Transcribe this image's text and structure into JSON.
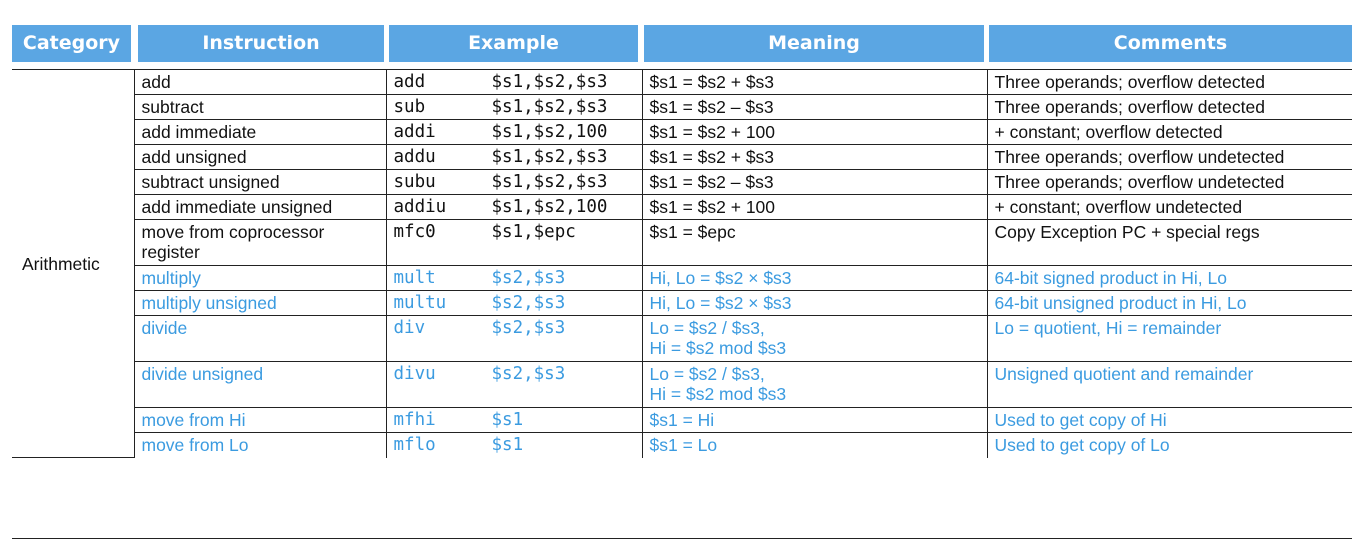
{
  "header": {
    "category": "Category",
    "instruction": "Instruction",
    "example": "Example",
    "meaning": "Meaning",
    "comments": "Comments"
  },
  "category_label": "Arithmetic",
  "rows": [
    {
      "instruction": "add",
      "op": "add",
      "args": "$s1,$s2,$s3",
      "meaning": "$s1 = $s2 + $s3",
      "comment": "Three operands; overflow detected",
      "highlight": false
    },
    {
      "instruction": "subtract",
      "op": "sub",
      "args": "$s1,$s2,$s3",
      "meaning": "$s1 = $s2 – $s3",
      "comment": "Three operands; overflow detected",
      "highlight": false
    },
    {
      "instruction": "add immediate",
      "op": "addi",
      "args": "$s1,$s2,100",
      "meaning": "$s1 = $s2 + 100",
      "comment": "+ constant; overflow detected",
      "highlight": false
    },
    {
      "instruction": "add unsigned",
      "op": "addu",
      "args": "$s1,$s2,$s3",
      "meaning": "$s1 = $s2 + $s3",
      "comment": "Three operands; overflow undetected",
      "highlight": false
    },
    {
      "instruction": "subtract unsigned",
      "op": "subu",
      "args": "$s1,$s2,$s3",
      "meaning": "$s1 = $s2 – $s3",
      "comment": "Three operands; overflow undetected",
      "highlight": false
    },
    {
      "instruction": "add immediate unsigned",
      "op": "addiu",
      "args": "$s1,$s2,100",
      "meaning": "$s1 = $s2 + 100",
      "comment": "+ constant; overflow undetected",
      "highlight": false
    },
    {
      "instruction": "move from coprocessor register",
      "op": "mfc0",
      "args": "$s1,$epc",
      "meaning": "$s1 = $epc",
      "comment": "Copy Exception PC + special regs",
      "highlight": false
    },
    {
      "instruction": "multiply",
      "op": "mult",
      "args": "$s2,$s3",
      "meaning": "Hi, Lo = $s2 × $s3",
      "comment": "64-bit signed product in Hi, Lo",
      "highlight": true
    },
    {
      "instruction": "multiply unsigned",
      "op": "multu",
      "args": "$s2,$s3",
      "meaning": "Hi, Lo = $s2 × $s3",
      "comment": "64-bit unsigned product in Hi, Lo",
      "highlight": true
    },
    {
      "instruction": "divide",
      "op": "div",
      "args": "$s2,$s3",
      "meaning": "Lo = $s2 / $s3,",
      "meaning2": "Hi = $s2 mod $s3",
      "comment": "Lo = quotient, Hi = remainder",
      "highlight": true
    },
    {
      "instruction": "divide unsigned",
      "op": "divu",
      "args": "$s2,$s3",
      "meaning": "Lo = $s2 / $s3,",
      "meaning2": "Hi = $s2 mod $s3",
      "comment": "Unsigned quotient and remainder",
      "highlight": true
    },
    {
      "instruction": "move from Hi",
      "op": "mfhi",
      "args": "$s1",
      "meaning": "$s1 = Hi",
      "comment": "Used to get copy of Hi",
      "highlight": true
    },
    {
      "instruction": "move from Lo",
      "op": "mflo",
      "args": "$s1",
      "meaning": "$s1 = Lo",
      "comment": "Used to get copy of Lo",
      "highlight": true
    }
  ],
  "colors": {
    "header_bg": "#5ba6e3",
    "header_text": "#ffffff",
    "highlight_text": "#3b9be0",
    "text": "#111111"
  }
}
